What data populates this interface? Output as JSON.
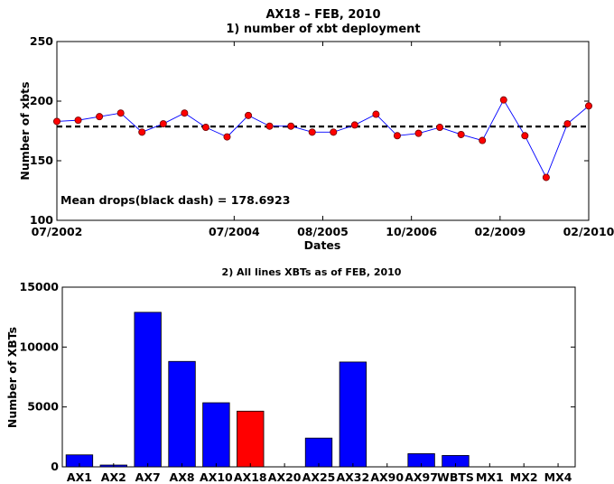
{
  "chart_data": [
    {
      "type": "line",
      "title": "AX18 – FEB, 2010",
      "subtitle": "1) number of xbt deployment",
      "xlabel": "Dates",
      "ylabel": "Number of xbts",
      "ylim": [
        100,
        250
      ],
      "yticks": [
        100,
        150,
        200,
        250
      ],
      "x_tick_labels": [
        "07/2002",
        "07/2004",
        "08/2005",
        "10/2006",
        "02/2009",
        "02/2010"
      ],
      "x_tick_index": [
        0,
        10,
        15,
        20,
        25,
        30
      ],
      "values": [
        183,
        184,
        187,
        190,
        174,
        181,
        190,
        178,
        170,
        188,
        179,
        179,
        174,
        174,
        180,
        189,
        171,
        173,
        178,
        172,
        167,
        201,
        171,
        136,
        181,
        196
      ],
      "mean_line": 178.6923,
      "annotation": "Mean drops(black dash) = 178.6923",
      "grid": false,
      "colors": {
        "line": "#0000ff",
        "marker": "#ff0000",
        "mean": "#000000"
      }
    },
    {
      "type": "bar",
      "title": "2) All lines XBTs as of FEB, 2010",
      "xlabel": "",
      "ylabel": "Number of XBTs",
      "ylim": [
        0,
        15000
      ],
      "yticks": [
        0,
        5000,
        10000,
        15000
      ],
      "categories": [
        "AX1",
        "AX2",
        "AX7",
        "AX8",
        "AX10",
        "AX18",
        "AX20",
        "AX25",
        "AX32",
        "AX90",
        "AX97",
        "WBTS",
        "MX1",
        "MX2",
        "MX4"
      ],
      "values": [
        1000,
        150,
        12900,
        8800,
        5350,
        4650,
        0,
        2400,
        8750,
        0,
        1100,
        950,
        0,
        0,
        0
      ],
      "highlight": "AX18",
      "grid": false,
      "colors": {
        "bar": "#0000ff",
        "highlight": "#ff0000"
      }
    }
  ]
}
